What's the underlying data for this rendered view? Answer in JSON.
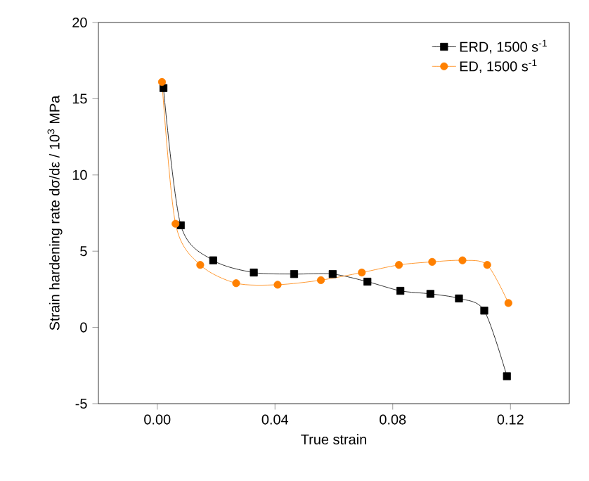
{
  "chart_data": {
    "type": "line",
    "xlabel": "True strain",
    "ylabel": "Strain hardening rate dσ/dε / 10$^{3}$ MPa",
    "xlim": [
      -0.02,
      0.14
    ],
    "ylim": [
      -5,
      20
    ],
    "xticks": [
      {
        "value": 0,
        "label": "0.00"
      },
      0.04,
      0.08,
      0.12
    ],
    "yticks": [
      -5,
      0,
      5,
      10,
      15,
      20
    ],
    "grid": false,
    "legend": "top right",
    "series": [
      {
        "name": "ERD, 1500 s$^{-1}$",
        "color": "#000000",
        "marker": "square",
        "x": [
          0.0021,
          0.008,
          0.019,
          0.0328,
          0.0465,
          0.0596,
          0.0714,
          0.0826,
          0.0928,
          0.1025,
          0.1111,
          0.1188
        ],
        "values": [
          15.7,
          6.7,
          4.4,
          3.6,
          3.5,
          3.5,
          3.0,
          2.4,
          2.2,
          1.9,
          1.1,
          -3.2
        ]
      },
      {
        "name": "ED, 1500 s$^{-1}$",
        "color": "#ff8000",
        "marker": "circle",
        "x": [
          0.0016,
          0.0062,
          0.0146,
          0.0268,
          0.0409,
          0.0556,
          0.0695,
          0.0821,
          0.0934,
          0.1037,
          0.1121,
          0.1193
        ],
        "values": [
          16.1,
          6.8,
          4.1,
          2.9,
          2.8,
          3.1,
          3.6,
          4.1,
          4.3,
          4.4,
          4.1,
          1.6
        ]
      }
    ]
  }
}
